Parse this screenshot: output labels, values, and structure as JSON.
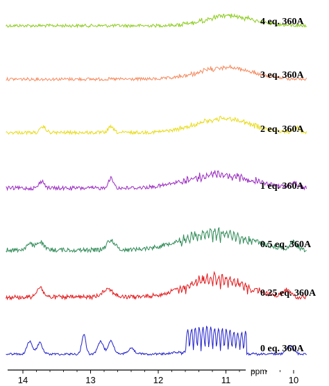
{
  "chart_data": {
    "type": "line",
    "xlabel": "ppm",
    "x_ticks": [
      14,
      13,
      12,
      11,
      10
    ],
    "xlim": [
      14.25,
      9.8
    ],
    "x_reversed": true,
    "grid": false,
    "series": [
      {
        "name": "4 eq. 360A",
        "color": "#8ccc1c"
      },
      {
        "name": "3 eq. 360A",
        "color": "#f58a5e"
      },
      {
        "name": "2 eq. 360A",
        "color": "#e8dc1a"
      },
      {
        "name": "1 eq. 360A",
        "color": "#9b2bc2"
      },
      {
        "name": "0.5 eq. 360A",
        "color": "#2e8b57"
      },
      {
        "name": "0.25 eq. 360A",
        "color": "#e3191c"
      },
      {
        "name": "0 eq. 360A",
        "color": "#1f1fcc"
      }
    ]
  }
}
